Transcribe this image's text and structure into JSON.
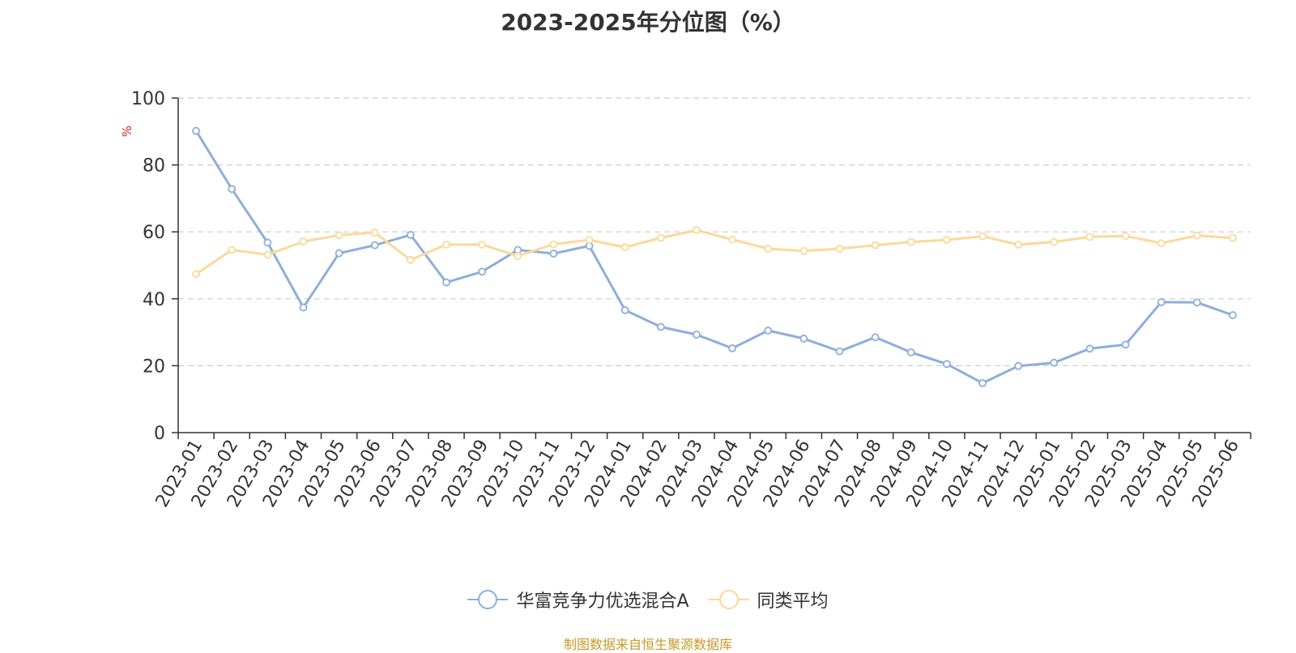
{
  "chart_data": {
    "type": "line",
    "title": "2023-2025年分位图（%）",
    "ylabel": "%",
    "ylim": [
      0,
      100
    ],
    "yticks": [
      0,
      20,
      40,
      60,
      80,
      100
    ],
    "grid": true,
    "legend_position": "bottom-center",
    "categories": [
      "2023-01",
      "2023-02",
      "2023-03",
      "2023-04",
      "2023-05",
      "2023-06",
      "2023-07",
      "2023-08",
      "2023-09",
      "2023-10",
      "2023-11",
      "2023-12",
      "2024-01",
      "2024-02",
      "2024-03",
      "2024-04",
      "2024-05",
      "2024-06",
      "2024-07",
      "2024-08",
      "2024-09",
      "2024-10",
      "2024-11",
      "2024-12",
      "2025-01",
      "2025-02",
      "2025-03",
      "2025-04",
      "2025-05",
      "2025-06"
    ],
    "series": [
      {
        "name": "华富竞争力优选混合A",
        "color": "#8eaedb",
        "values": [
          90.2,
          72.8,
          56.8,
          37.4,
          53.6,
          56.0,
          59.1,
          44.9,
          48.1,
          54.6,
          53.5,
          55.8,
          36.6,
          31.6,
          29.3,
          25.2,
          30.5,
          28.1,
          24.3,
          28.5,
          24.0,
          20.5,
          14.8,
          19.9,
          20.9,
          25.1,
          26.3,
          39.0,
          38.9,
          35.1
        ]
      },
      {
        "name": "同类平均",
        "color": "#fbd999",
        "values": [
          47.4,
          54.6,
          53.2,
          57.1,
          59.0,
          59.8,
          51.6,
          56.2,
          56.2,
          52.8,
          56.3,
          57.6,
          55.4,
          58.2,
          60.5,
          57.7,
          55.0,
          54.3,
          55.0,
          56.0,
          57.0,
          57.6,
          58.7,
          56.2,
          57.0,
          58.5,
          58.8,
          56.6,
          58.9,
          58.2
        ]
      }
    ]
  },
  "source_note": "制图数据来自恒生聚源数据库"
}
